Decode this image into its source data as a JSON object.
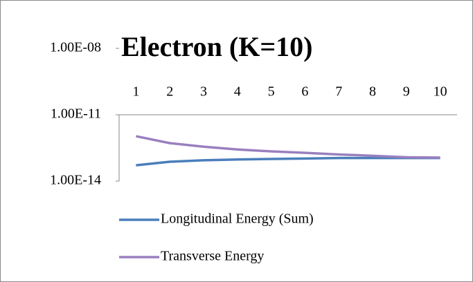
{
  "chart_data": {
    "type": "line",
    "title": "Electron (K=10)",
    "categories": [
      "1",
      "2",
      "3",
      "4",
      "5",
      "6",
      "7",
      "8",
      "9",
      "10"
    ],
    "series": [
      {
        "name": "Longitudinal Energy (Sum)",
        "color": "#4a7ebb",
        "values": [
          5.2e-14,
          7.5e-14,
          8.7e-14,
          9.5e-14,
          1e-13,
          1.05e-13,
          1.1e-13,
          1.1e-13,
          1.1e-13,
          1.1e-13
        ]
      },
      {
        "name": "Transverse Energy",
        "color": "#9a7fbf",
        "values": [
          1.07e-12,
          5.2e-13,
          3.6e-13,
          2.7e-13,
          2.2e-13,
          1.9e-13,
          1.6e-13,
          1.4e-13,
          1.2e-13,
          1.15e-13
        ]
      }
    ],
    "ylim": [
      1e-14,
      1e-08
    ],
    "log_scale": true,
    "yticks": [
      {
        "value": 1e-14,
        "label": "1.00E-14"
      },
      {
        "value": 1e-11,
        "label": "1.00E-11"
      },
      {
        "value": 1e-08,
        "label": "1.00E-08"
      }
    ],
    "x_axis_crosses": 1e-11,
    "grid": false,
    "legend": "bottom"
  }
}
